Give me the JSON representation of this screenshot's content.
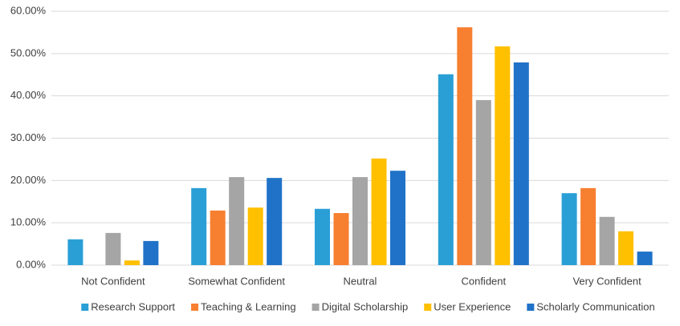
{
  "chart_data": {
    "type": "bar",
    "categories": [
      "Not Confident",
      "Somewhat Confident",
      "Neutral",
      "Confident",
      "Very Confident"
    ],
    "series": [
      {
        "name": "Research Support",
        "color": "#2a9fd6",
        "values": [
          6.1,
          18.2,
          13.3,
          45.1,
          17.0
        ]
      },
      {
        "name": "Teaching & Learning",
        "color": "#f77f30",
        "values": [
          0,
          12.9,
          12.3,
          56.2,
          18.2
        ]
      },
      {
        "name": "Digital Scholarship",
        "color": "#a5a5a5",
        "values": [
          7.6,
          20.8,
          20.8,
          39.0,
          11.4
        ]
      },
      {
        "name": "User Experience",
        "color": "#ffc000",
        "values": [
          1.1,
          13.6,
          25.2,
          51.7,
          8.0
        ]
      },
      {
        "name": "Scholarly Communication",
        "color": "#1f72c8",
        "values": [
          5.7,
          20.6,
          22.3,
          47.9,
          3.2
        ]
      }
    ],
    "ylim": [
      0,
      60
    ],
    "yticks": [
      {
        "value": 0,
        "label": "0.00%"
      },
      {
        "value": 10,
        "label": "10.00%"
      },
      {
        "value": 20,
        "label": "20.00%"
      },
      {
        "value": 30,
        "label": "30.00%"
      },
      {
        "value": 40,
        "label": "40.00%"
      },
      {
        "value": 50,
        "label": "50.00%"
      },
      {
        "value": 60,
        "label": "60.00%"
      }
    ],
    "grid": true,
    "legend": "bottom"
  }
}
